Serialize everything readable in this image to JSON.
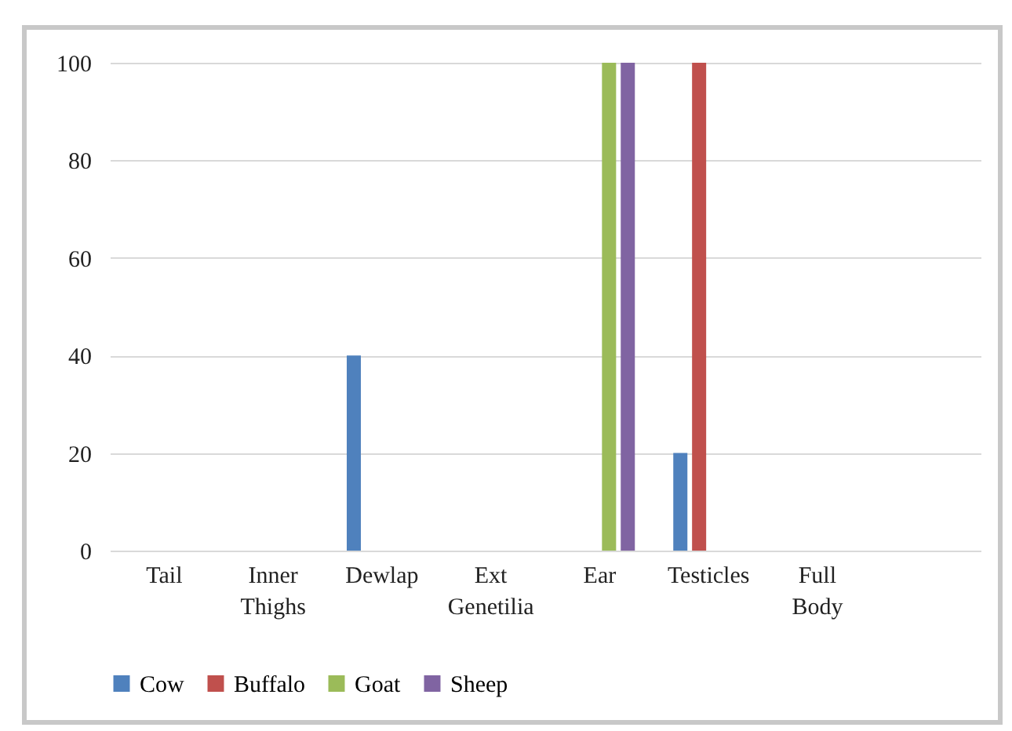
{
  "chart_data": {
    "type": "bar",
    "categories": [
      "Tail",
      "Inner Thighs",
      "Dewlap",
      "Ext Genetilia",
      "Ear",
      "Testicles",
      "Full Body",
      null
    ],
    "series": [
      {
        "name": "Cow",
        "color": "#4f81bd",
        "values": [
          0,
          0,
          40,
          0,
          0,
          20,
          0,
          null
        ]
      },
      {
        "name": "Buffalo",
        "color": "#c0504d",
        "values": [
          0,
          0,
          0,
          0,
          0,
          100,
          0,
          null
        ]
      },
      {
        "name": "Goat",
        "color": "#9bbb59",
        "values": [
          0,
          0,
          0,
          0,
          100,
          0,
          0,
          null
        ]
      },
      {
        "name": "Sheep",
        "color": "#8064a2",
        "values": [
          0,
          0,
          0,
          0,
          100,
          0,
          0,
          null
        ]
      }
    ],
    "ylim": [
      0,
      100
    ],
    "yticks": [
      0,
      20,
      40,
      60,
      80,
      100
    ],
    "grid": "y",
    "legend": "bottom"
  }
}
